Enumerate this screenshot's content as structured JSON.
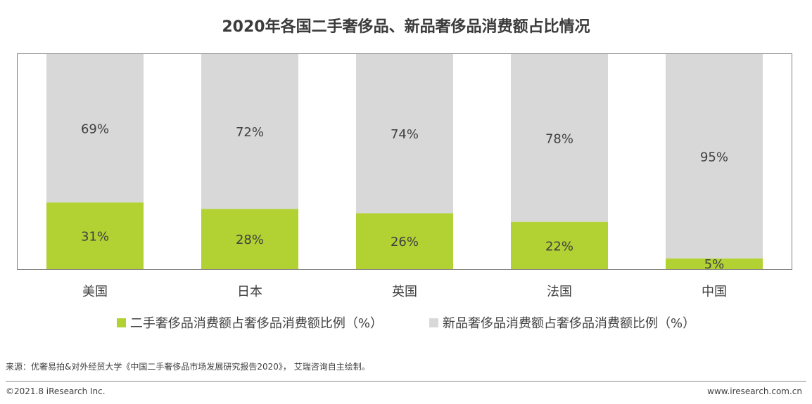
{
  "title": "2020年各国二手奢侈品、新品奢侈品消费额占比情况",
  "colors": {
    "secondhand": "#b1d232",
    "new": "#d8d8d8"
  },
  "legend": [
    {
      "label": "二手奢侈品消费额占奢侈品消费额比例（%）",
      "color": "#b1d232"
    },
    {
      "label": "新品奢侈品消费额占奢侈品消费额比例（%）",
      "color": "#d8d8d8"
    }
  ],
  "chart_data": {
    "type": "bar",
    "stacked": true,
    "categories": [
      "美国",
      "日本",
      "英国",
      "法国",
      "中国"
    ],
    "series": [
      {
        "name": "二手奢侈品消费额占奢侈品消费额比例（%）",
        "values": [
          31,
          28,
          26,
          22,
          5
        ],
        "labels": [
          "31%",
          "28%",
          "26%",
          "22%",
          "5%"
        ]
      },
      {
        "name": "新品奢侈品消费额占奢侈品消费额比例（%）",
        "values": [
          69,
          72,
          74,
          78,
          95
        ],
        "labels": [
          "69%",
          "72%",
          "74%",
          "78%",
          "95%"
        ]
      }
    ],
    "ylim": [
      0,
      100
    ],
    "grid": false,
    "legend_position": "bottom"
  },
  "source": "来源：优奢易拍&对外经贸大学《中国二手奢侈品市场发展研究报告2020》， 艾瑞咨询自主绘制。",
  "footer": {
    "copyright": "©2021.8 iResearch Inc.",
    "website": "www.iresearch.com.cn"
  }
}
